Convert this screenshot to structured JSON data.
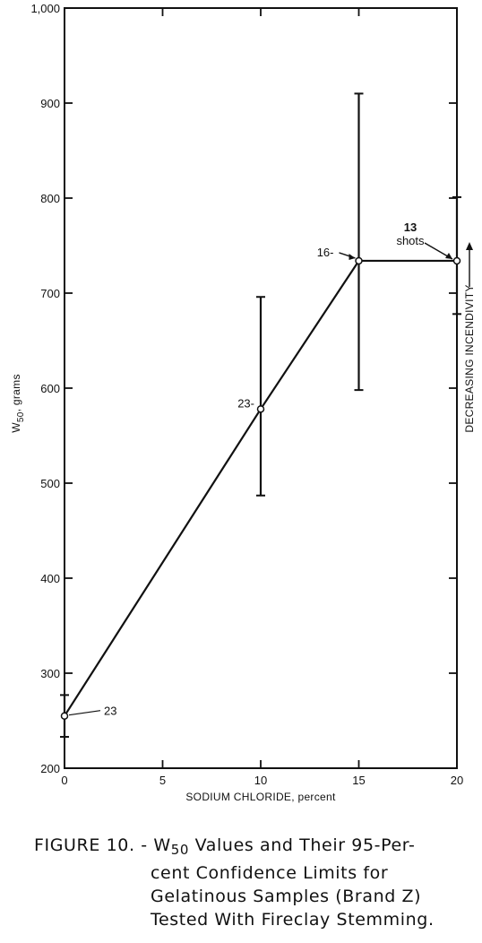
{
  "chart_data": {
    "type": "line",
    "xlabel": "SODIUM CHLORIDE, percent",
    "ylabel_main": "W",
    "ylabel_sub": "50",
    "ylabel_unit": "grams",
    "right_label": "DECREASING INCENDIVITY",
    "xlim": [
      0,
      20
    ],
    "ylim": [
      200,
      1000
    ],
    "x_ticks": [
      {
        "value": 0,
        "label": "0"
      },
      {
        "value": 5,
        "label": "5"
      },
      {
        "value": 10,
        "label": "10"
      },
      {
        "value": 15,
        "label": "15"
      },
      {
        "value": 20,
        "label": "20"
      }
    ],
    "y_ticks": [
      {
        "value": 200,
        "label": "200"
      },
      {
        "value": 300,
        "label": "300"
      },
      {
        "value": 400,
        "label": "400"
      },
      {
        "value": 500,
        "label": "500"
      },
      {
        "value": 600,
        "label": "600"
      },
      {
        "value": 700,
        "label": "700"
      },
      {
        "value": 800,
        "label": "800"
      },
      {
        "value": 900,
        "label": "900"
      },
      {
        "value": 1000,
        "label": "1,000"
      }
    ],
    "series": [
      {
        "points": [
          {
            "x": 0,
            "y": 255,
            "lower": 233,
            "upper": 277
          },
          {
            "x": 10,
            "y": 578,
            "lower": 487,
            "upper": 696
          },
          {
            "x": 15,
            "y": 734,
            "lower": 598,
            "upper": 910
          },
          {
            "x": 20,
            "y": 734,
            "lower": 678,
            "upper": 801
          }
        ]
      }
    ],
    "annotations": [
      {
        "text": "23",
        "x": 0,
        "y": 255
      },
      {
        "text": "23-",
        "x": 10,
        "y": 578
      },
      {
        "text": "16-",
        "x": 15,
        "y": 734
      },
      {
        "text": "13",
        "x": 20,
        "y": 734
      },
      {
        "text": "shots",
        "x": 20,
        "y": 734
      }
    ],
    "grid": false
  },
  "caption": {
    "prefix": "FIGURE 10. - W",
    "sub": "50",
    "line1_rest": " Values and Their 95-Per-",
    "line2": "cent Confidence Limits for",
    "line3": "Gelatinous Samples (Brand Z)",
    "line4": "Tested With Fireclay Stemming."
  }
}
